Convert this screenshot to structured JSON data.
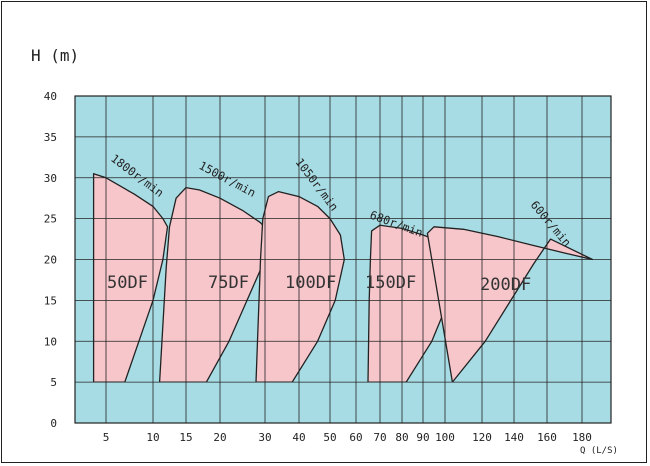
{
  "chart_data": {
    "type": "area",
    "title": "",
    "ylabel": "H (m)",
    "xlabel": "Q (L/S)",
    "ylim": [
      0,
      40
    ],
    "yticks": [
      0,
      5,
      10,
      15,
      20,
      25,
      30,
      35,
      40
    ],
    "xticks": [
      "5",
      "10",
      "15",
      "20",
      "30",
      "40",
      "50",
      "60",
      "70",
      "80",
      "90",
      "100",
      "120",
      "140",
      "160",
      "180"
    ],
    "grid": true,
    "colors": {
      "plot_bg": "#a8dce4",
      "region_fill": "#f6c6cb",
      "lines": "#222222"
    },
    "series": [
      {
        "name": "50DF",
        "speed": "1800r/min",
        "region": [
          [
            3.0,
            5
          ],
          [
            3.0,
            30.5
          ],
          [
            5,
            30.0
          ],
          [
            8,
            28.0
          ],
          [
            10,
            26.5
          ],
          [
            11.5,
            25.0
          ],
          [
            12.2,
            24.0
          ],
          [
            11.5,
            20.0
          ],
          [
            10,
            15.0
          ],
          [
            8.5,
            10.0
          ],
          [
            7,
            5
          ]
        ]
      },
      {
        "name": "75DF",
        "speed": "1500r/min",
        "region": [
          [
            11,
            5
          ],
          [
            12,
            19.0
          ],
          [
            12.5,
            24.0
          ],
          [
            13.5,
            27.5
          ],
          [
            15,
            28.8
          ],
          [
            17,
            28.5
          ],
          [
            20,
            27.5
          ],
          [
            25,
            26.0
          ],
          [
            29,
            24.5
          ],
          [
            31.5,
            23.2
          ],
          [
            30,
            20.0
          ],
          [
            26,
            15.0
          ],
          [
            22,
            10.0
          ],
          [
            18,
            5
          ]
        ]
      },
      {
        "name": "100DF",
        "speed": "1050r/min",
        "region": [
          [
            28,
            5
          ],
          [
            29,
            20.0
          ],
          [
            29.5,
            25.0
          ],
          [
            31,
            27.7
          ],
          [
            34,
            28.3
          ],
          [
            40,
            27.7
          ],
          [
            46,
            26.5
          ],
          [
            50,
            25.0
          ],
          [
            54,
            23.0
          ],
          [
            55.5,
            20.0
          ],
          [
            52,
            15.0
          ],
          [
            46,
            10.0
          ],
          [
            38,
            5
          ]
        ]
      },
      {
        "name": "150DF",
        "speed": "680r/min",
        "region": [
          [
            65,
            5
          ],
          [
            65.5,
            15.0
          ],
          [
            66,
            20.0
          ],
          [
            66.5,
            23.5
          ],
          [
            70,
            24.2
          ],
          [
            80,
            23.8
          ],
          [
            90,
            23.0
          ],
          [
            100,
            22.0
          ],
          [
            106,
            20.5
          ],
          [
            102,
            15.0
          ],
          [
            94,
            10.0
          ],
          [
            82,
            5
          ]
        ]
      },
      {
        "name": "200DF",
        "speed": "600r/min",
        "region": [
          [
            104,
            5
          ],
          [
            122,
            10.0
          ],
          [
            138,
            15.0
          ],
          [
            152,
            19.5
          ],
          [
            162,
            22.5
          ],
          [
            186,
            20.0
          ],
          [
            170,
            20.8
          ],
          [
            150,
            21.8
          ],
          [
            130,
            22.8
          ],
          [
            110,
            23.7
          ],
          [
            95,
            24.0
          ],
          [
            92,
            23.2
          ],
          [
            92,
            23.2
          ]
        ]
      }
    ]
  }
}
